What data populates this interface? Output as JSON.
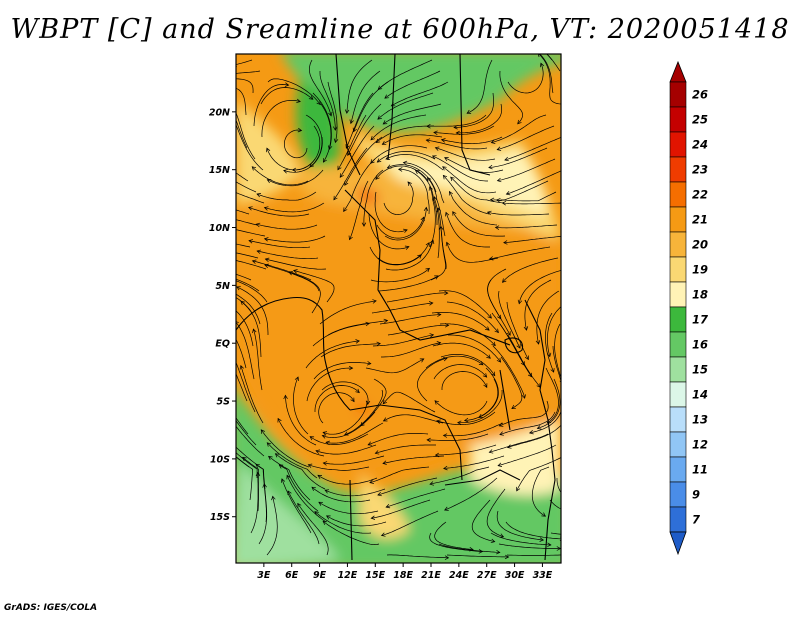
{
  "title": "WBPT [C] and Sreamline at 600hPa, VT: 2020051418",
  "footer": "GrADS: IGES/COLA",
  "map": {
    "lat_range": [
      -19,
      25
    ],
    "lon_range": [
      0,
      35
    ],
    "lat_ticks": [
      {
        "value": 20,
        "label": "20N"
      },
      {
        "value": 15,
        "label": "15N"
      },
      {
        "value": 10,
        "label": "10N"
      },
      {
        "value": 5,
        "label": "5N"
      },
      {
        "value": 0,
        "label": "EQ"
      },
      {
        "value": -5,
        "label": "5S"
      },
      {
        "value": -10,
        "label": "10S"
      },
      {
        "value": -15,
        "label": "15S"
      }
    ],
    "lon_ticks": [
      {
        "value": 3,
        "label": "3E"
      },
      {
        "value": 6,
        "label": "6E"
      },
      {
        "value": 9,
        "label": "9E"
      },
      {
        "value": 12,
        "label": "12E"
      },
      {
        "value": 15,
        "label": "15E"
      },
      {
        "value": 18,
        "label": "18E"
      },
      {
        "value": 21,
        "label": "21E"
      },
      {
        "value": 24,
        "label": "24E"
      },
      {
        "value": 27,
        "label": "27E"
      },
      {
        "value": 30,
        "label": "30E"
      },
      {
        "value": 33,
        "label": "33E"
      }
    ]
  },
  "colorbar": {
    "levels": [
      {
        "label": "26",
        "color": "#a50000"
      },
      {
        "label": "25",
        "color": "#c40000"
      },
      {
        "label": "24",
        "color": "#e11400"
      },
      {
        "label": "23",
        "color": "#f03c00"
      },
      {
        "label": "22",
        "color": "#f56e00"
      },
      {
        "label": "21",
        "color": "#f59a14"
      },
      {
        "label": "20",
        "color": "#f7b43a"
      },
      {
        "label": "19",
        "color": "#fad873"
      },
      {
        "label": "18",
        "color": "#fff3b6"
      },
      {
        "label": "17",
        "color": "#3cb83c"
      },
      {
        "label": "16",
        "color": "#64c864"
      },
      {
        "label": "15",
        "color": "#9fe09f"
      },
      {
        "label": "14",
        "color": "#dcf7e8"
      },
      {
        "label": "13",
        "color": "#b9defa"
      },
      {
        "label": "12",
        "color": "#91c6f5"
      },
      {
        "label": "11",
        "color": "#6aaaf0"
      },
      {
        "label": "9",
        "color": "#4a8de8"
      },
      {
        "label": "7",
        "color": "#2e6fd8"
      }
    ],
    "bottom_color": "#1e5cc8"
  },
  "field_colors": {
    "orange_deep": "#f56e00",
    "orange": "#f59a14",
    "orange_light": "#f7b43a",
    "yellow": "#fad873",
    "cream": "#fff3b6",
    "green_dark": "#3cb83c",
    "green": "#64c864",
    "green_light": "#9fe09f"
  }
}
